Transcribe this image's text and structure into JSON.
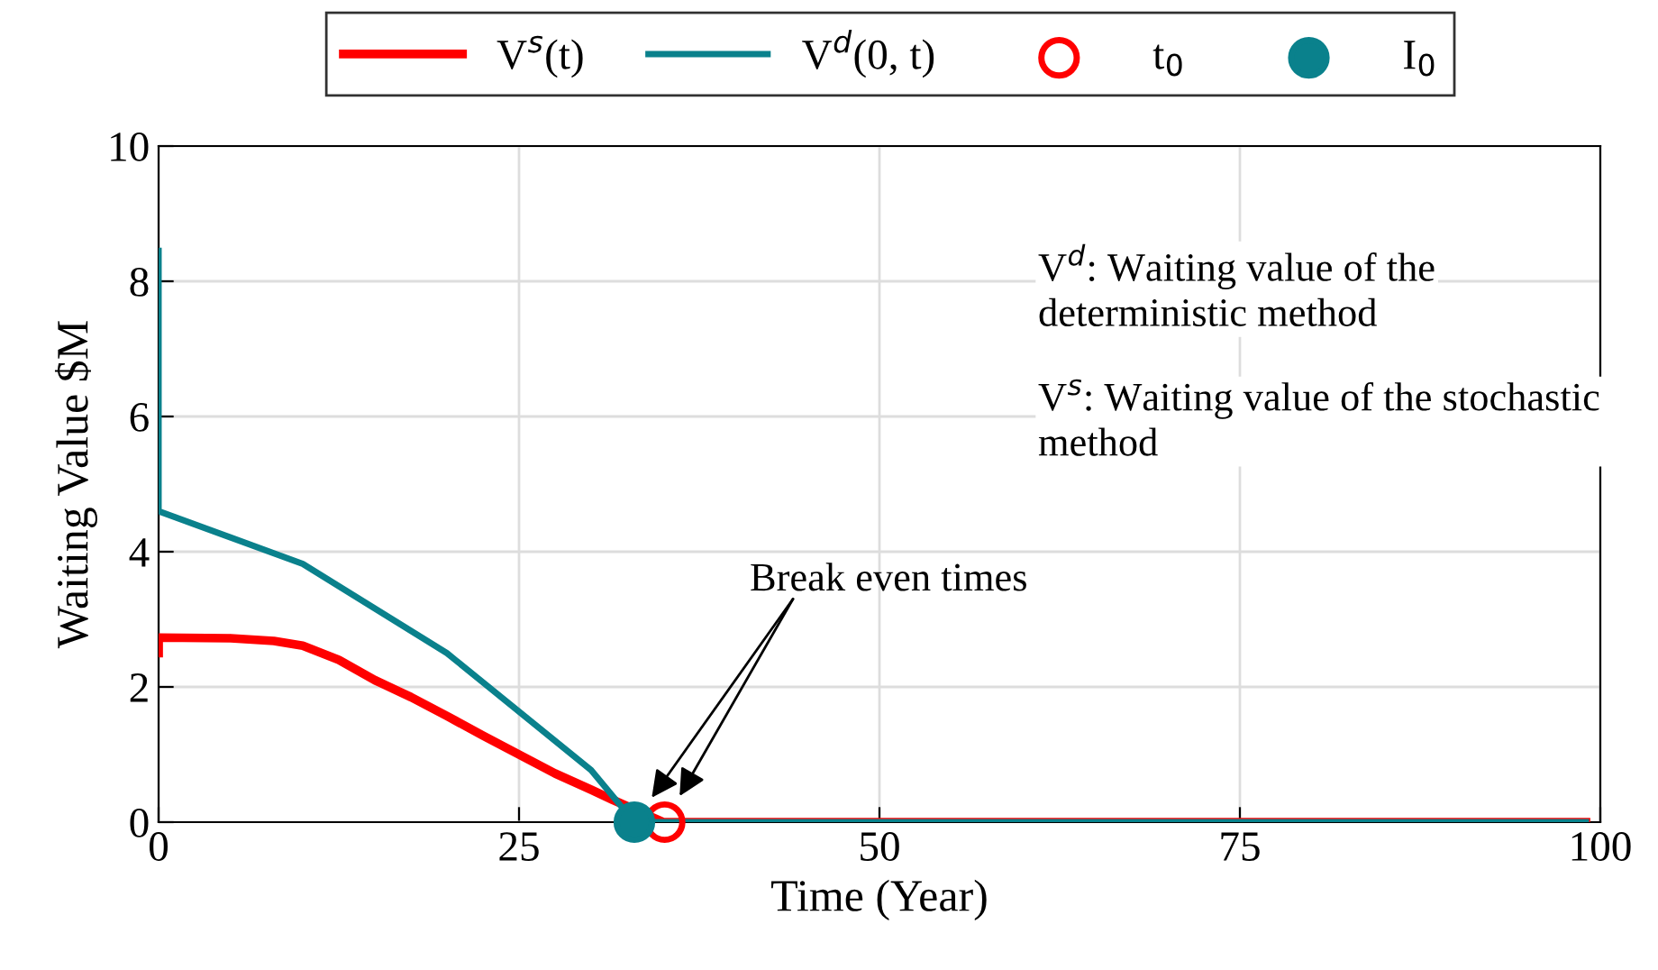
{
  "chart_data": {
    "type": "line",
    "xlabel": "Time (Year)",
    "ylabel": "Waiting Value $M",
    "xlim": [
      0,
      100
    ],
    "ylim": [
      0,
      10
    ],
    "xticks": [
      0,
      25,
      50,
      75,
      100
    ],
    "yticks": [
      0,
      2,
      4,
      6,
      8,
      10
    ],
    "grid": true,
    "legend": "top",
    "series": [
      {
        "name": "V$^{s}$(t)",
        "color": "#ff0000",
        "x": [
          0,
          0,
          5,
          8,
          10,
          12.5,
          15,
          17.5,
          20,
          22.5,
          25,
          27.5,
          30,
          31.5,
          35,
          99
        ],
        "values": [
          2.5,
          2.73,
          2.72,
          2.68,
          2.61,
          2.4,
          2.1,
          1.85,
          1.57,
          1.28,
          1.0,
          0.72,
          0.48,
          0.33,
          0,
          0
        ]
      },
      {
        "name": "V$^{d}$(0, t)",
        "color": "#0a818c",
        "x": [
          0,
          0,
          10,
          20,
          30,
          33,
          99
        ],
        "values": [
          8.45,
          4.6,
          3.82,
          2.5,
          0.77,
          0,
          0
        ]
      },
      {
        "name": "t$_{0}$",
        "type": "scatter",
        "marker": "circle",
        "color": "#ff0000",
        "x": [
          35.1
        ],
        "values": [
          0
        ]
      },
      {
        "name": "I$_{0}$",
        "type": "scatter",
        "marker": "circle",
        "color": "#0a818c",
        "x": [
          33
        ],
        "values": [
          0
        ]
      }
    ],
    "annotations": [
      "Break even times",
      "V$^{d}$: Waiting value of the deterministic method",
      "V$^{s}$: Waiting value of the stochastic method"
    ]
  }
}
